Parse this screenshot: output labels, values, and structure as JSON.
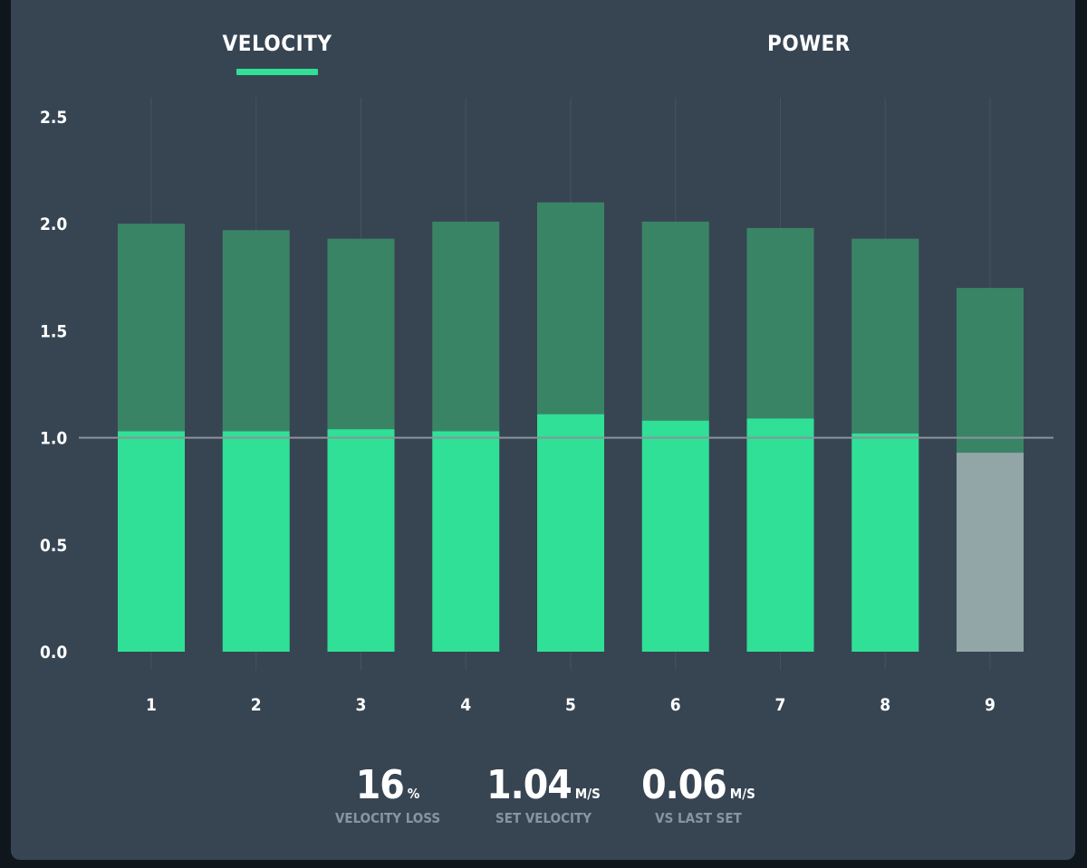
{
  "tabs": [
    {
      "label": "VELOCITY",
      "active": true
    },
    {
      "label": "POWER",
      "active": false
    }
  ],
  "colors": {
    "background": "#374553",
    "bar_bottom": "#2fe096",
    "bar_top": "#3a8466",
    "bar_last_bottom": "#93a6a7",
    "reference_line": "#8c949a",
    "accent": "#2fe096"
  },
  "chart_data": {
    "type": "bar",
    "categories": [
      "1",
      "2",
      "3",
      "4",
      "5",
      "6",
      "7",
      "8",
      "9"
    ],
    "series": [
      {
        "values": [
          1.03,
          1.03,
          1.04,
          1.03,
          1.11,
          1.08,
          1.09,
          1.02,
          0.93
        ]
      },
      {
        "values": [
          2.0,
          1.97,
          1.93,
          2.01,
          2.1,
          2.01,
          1.98,
          1.93,
          1.7
        ]
      }
    ],
    "ylim": [
      0,
      2.5
    ],
    "yticks": [
      "0.0",
      "0.5",
      "1.0",
      "1.5",
      "2.0",
      "2.5"
    ],
    "reference_line": 1.0,
    "grid": "vertical",
    "highlighted_category": "9"
  },
  "stats": [
    {
      "value": "16",
      "unit": "%",
      "label": "VELOCITY LOSS"
    },
    {
      "value": "1.04",
      "unit": "M/S",
      "label": "SET VELOCITY"
    },
    {
      "value": "0.06",
      "unit": "M/S",
      "label": "VS LAST SET"
    }
  ]
}
